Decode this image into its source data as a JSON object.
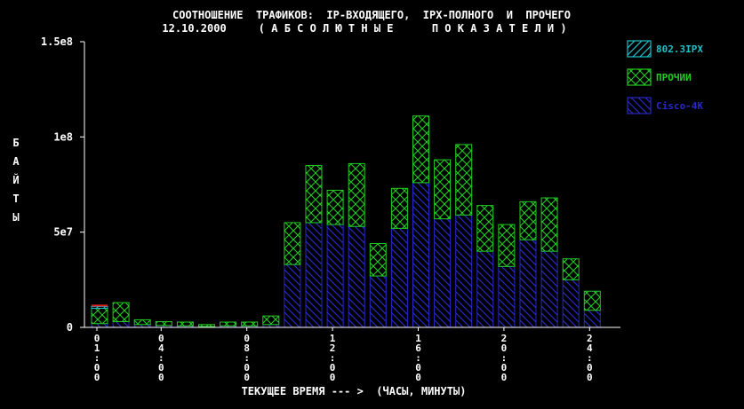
{
  "chart_data": {
    "type": "bar",
    "stacked": true,
    "title": "СООТНОШЕНИЕ  ТРАФИКОВ:  IP-ВХОДЯЩЕГО,  IPX-ПОЛНОГО  И  ПРОЧЕГО",
    "subtitle": "12.10.2000     ( А Б С О Л Ю Т Н Ы Е      П О К А З А Т Е Л И )",
    "xlabel": "ТЕКУЩЕЕ ВРЕМЯ --- >  (ЧАСЫ, МИНУТЫ)",
    "ylabel": [
      "Б",
      "А",
      "Й",
      "Т",
      "Ы"
    ],
    "ylim": [
      0,
      150000000
    ],
    "y_ticks": [
      {
        "value": 0,
        "label": "0"
      },
      {
        "value": 50000000,
        "label": "5e7"
      },
      {
        "value": 100000000,
        "label": "1e8"
      },
      {
        "value": 150000000,
        "label": "1.5e8"
      }
    ],
    "x_ticks": [
      {
        "at": 1,
        "label": "01:00"
      },
      {
        "at": 4,
        "label": "04:00"
      },
      {
        "at": 8,
        "label": "08:00"
      },
      {
        "at": 12,
        "label": "12:00"
      },
      {
        "at": 16,
        "label": "16:00"
      },
      {
        "at": 20,
        "label": "20:00"
      },
      {
        "at": 24,
        "label": "24:00"
      }
    ],
    "grid": false,
    "legend_position": "right",
    "categories": [
      "01:00",
      "02:00",
      "03:00",
      "04:00",
      "05:00",
      "06:00",
      "07:00",
      "08:00",
      "09:00",
      "10:00",
      "11:00",
      "12:00",
      "13:00",
      "14:00",
      "15:00",
      "16:00",
      "17:00",
      "18:00",
      "19:00",
      "20:00",
      "21:00",
      "22:00",
      "23:00",
      "24:00"
    ],
    "series": [
      {
        "name": "Cisco-4K",
        "color": "#2828c8",
        "pattern": "backslash",
        "values": [
          2000000,
          3000000,
          1500000,
          1000000,
          800000,
          500000,
          800000,
          800000,
          1500000,
          33000000,
          55000000,
          54000000,
          53000000,
          27000000,
          52000000,
          76000000,
          57000000,
          59000000,
          40000000,
          32000000,
          46000000,
          40000000,
          25000000,
          9000000
        ]
      },
      {
        "name": "ПРОЧИИ",
        "color": "#22cc22",
        "pattern": "crosshatch",
        "values": [
          8000000,
          10000000,
          2500000,
          2000000,
          2000000,
          1000000,
          2000000,
          2000000,
          4500000,
          22000000,
          30000000,
          18000000,
          33000000,
          17000000,
          21000000,
          35000000,
          31000000,
          37000000,
          24000000,
          22000000,
          20000000,
          28000000,
          11000000,
          10000000
        ]
      },
      {
        "name": "802.3IPX",
        "color": "#20c0c8",
        "pattern": "slash",
        "values": [
          1000000,
          0,
          0,
          0,
          0,
          0,
          0,
          0,
          0,
          0,
          0,
          0,
          0,
          0,
          0,
          0,
          0,
          0,
          0,
          0,
          0,
          0,
          0,
          0
        ]
      }
    ],
    "extra_top_red": {
      "color": "#e02020",
      "values": [
        1000000,
        0,
        0,
        0,
        0,
        0,
        0,
        0,
        0,
        0,
        0,
        0,
        0,
        0,
        0,
        0,
        0,
        0,
        0,
        0,
        0,
        0,
        0,
        0
      ]
    },
    "colors": {
      "background": "#000000",
      "axis": "#ffffff",
      "text": "#ffffff"
    }
  }
}
